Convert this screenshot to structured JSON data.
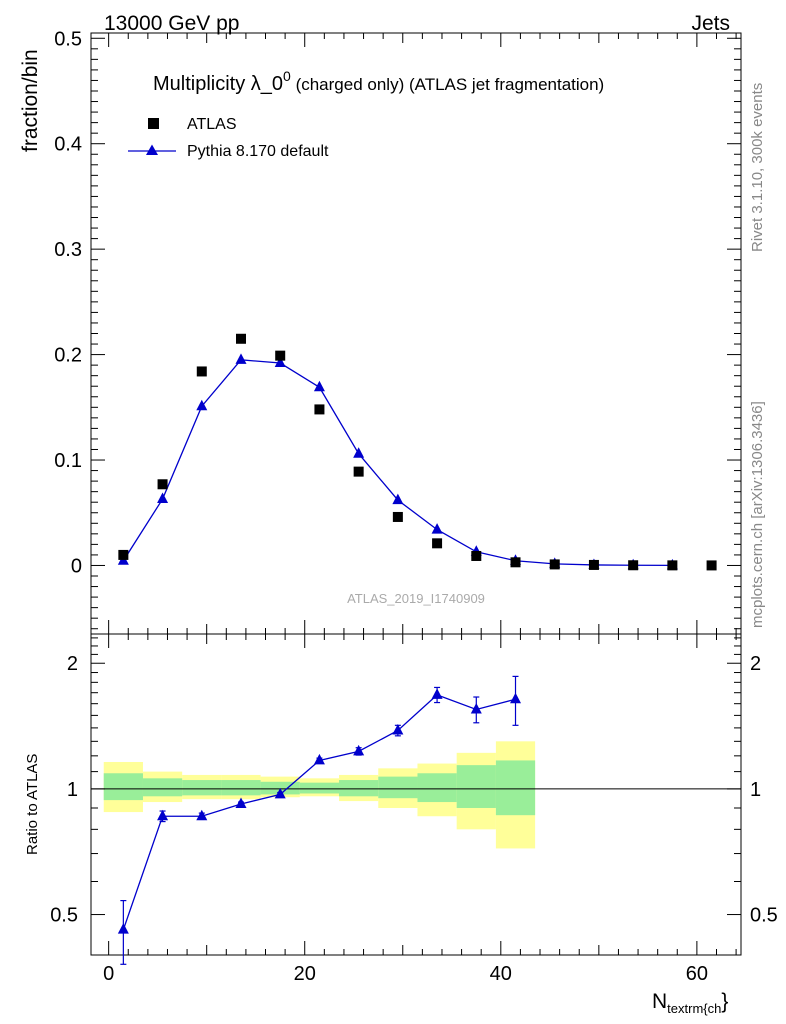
{
  "header": {
    "left": "13000 GeV pp",
    "right": "Jets"
  },
  "side": {
    "top": "Rivet 3.1.10,  300k events",
    "bottom": "mcplots.cern.ch [arXiv:1306.3436]"
  },
  "plot_title": {
    "main": "Multiplicity λ_0",
    "sup": "0",
    "sub": " (charged only) (ATLAS jet fragmentation)"
  },
  "legend": {
    "data": "ATLAS",
    "mc": "Pythia 8.170 default"
  },
  "watermark": "ATLAS_2019_I1740909",
  "axes": {
    "ylabel_top": "fraction/bin",
    "ylabel_bottom": "Ratio to ATLAS",
    "xlabel_main": "N",
    "xlabel_sub": "textrm{ch",
    "xlabel_close": "}"
  },
  "colors": {
    "mc": "#0000cc",
    "data": "#000000",
    "band_inner": "#99ee99",
    "band_outer": "#ffff99"
  },
  "chart_data": {
    "type": "line",
    "x": [
      1.5,
      5.5,
      9.5,
      13.5,
      17.5,
      21.5,
      25.5,
      29.5,
      33.5,
      37.5,
      41.5,
      45.5,
      49.5,
      53.5,
      57.5,
      61.5
    ],
    "x_edges": [
      -0.5,
      3.5,
      7.5,
      11.5,
      15.5,
      19.5,
      23.5,
      27.5,
      31.5,
      35.5,
      39.5,
      43.5,
      47.5,
      51.5,
      55.5,
      59.5,
      63.5
    ],
    "xlim": [
      -1.8,
      64.5
    ],
    "xticks": [
      0,
      20,
      40,
      60
    ],
    "main": {
      "ylim": [
        -0.065,
        0.505
      ],
      "yticks": [
        0,
        0.1,
        0.2,
        0.3,
        0.4,
        0.5
      ],
      "yticklabels": [
        "0",
        "0.1",
        "0.2",
        "0.3",
        "0.4",
        "0.5"
      ]
    },
    "ratio": {
      "ylim": [
        0.4,
        2.35
      ],
      "log": true,
      "yticks": [
        0.5,
        1,
        2
      ],
      "yticklabels": [
        "0.5",
        "1",
        "2"
      ]
    },
    "series": [
      {
        "name": "ATLAS",
        "values": [
          0.01,
          0.077,
          0.184,
          0.215,
          0.199,
          0.148,
          0.089,
          0.046,
          0.021,
          0.009,
          0.003,
          0.001,
          0.0005,
          0.0002,
          0.0001,
          5e-05
        ]
      },
      {
        "name": "Pythia 8.170 default",
        "values": [
          0.0045,
          0.063,
          0.151,
          0.195,
          0.192,
          0.169,
          0.106,
          0.062,
          0.034,
          0.013,
          0.0045,
          0.0015,
          0.0005,
          0.0002,
          0.0001,
          null
        ]
      }
    ],
    "ratio_values": [
      0.46,
      0.86,
      0.86,
      0.92,
      0.97,
      1.17,
      1.23,
      1.38,
      1.68,
      1.55,
      1.64
    ],
    "ratio_errors": [
      0.08,
      0.025,
      0.015,
      0.01,
      0.01,
      0.015,
      0.025,
      0.04,
      0.07,
      0.11,
      0.22
    ],
    "band_inner": [
      [
        0.94,
        1.09
      ],
      [
        0.96,
        1.06
      ],
      [
        0.965,
        1.05
      ],
      [
        0.965,
        1.05
      ],
      [
        0.97,
        1.04
      ],
      [
        0.975,
        1.035
      ],
      [
        0.96,
        1.05
      ],
      [
        0.95,
        1.07
      ],
      [
        0.93,
        1.09
      ],
      [
        0.9,
        1.14
      ],
      [
        0.865,
        1.17
      ]
    ],
    "band_outer": [
      [
        0.88,
        1.16
      ],
      [
        0.93,
        1.1
      ],
      [
        0.945,
        1.08
      ],
      [
        0.945,
        1.08
      ],
      [
        0.955,
        1.07
      ],
      [
        0.96,
        1.06
      ],
      [
        0.935,
        1.08
      ],
      [
        0.9,
        1.12
      ],
      [
        0.86,
        1.15
      ],
      [
        0.8,
        1.22
      ],
      [
        0.72,
        1.3
      ]
    ]
  }
}
